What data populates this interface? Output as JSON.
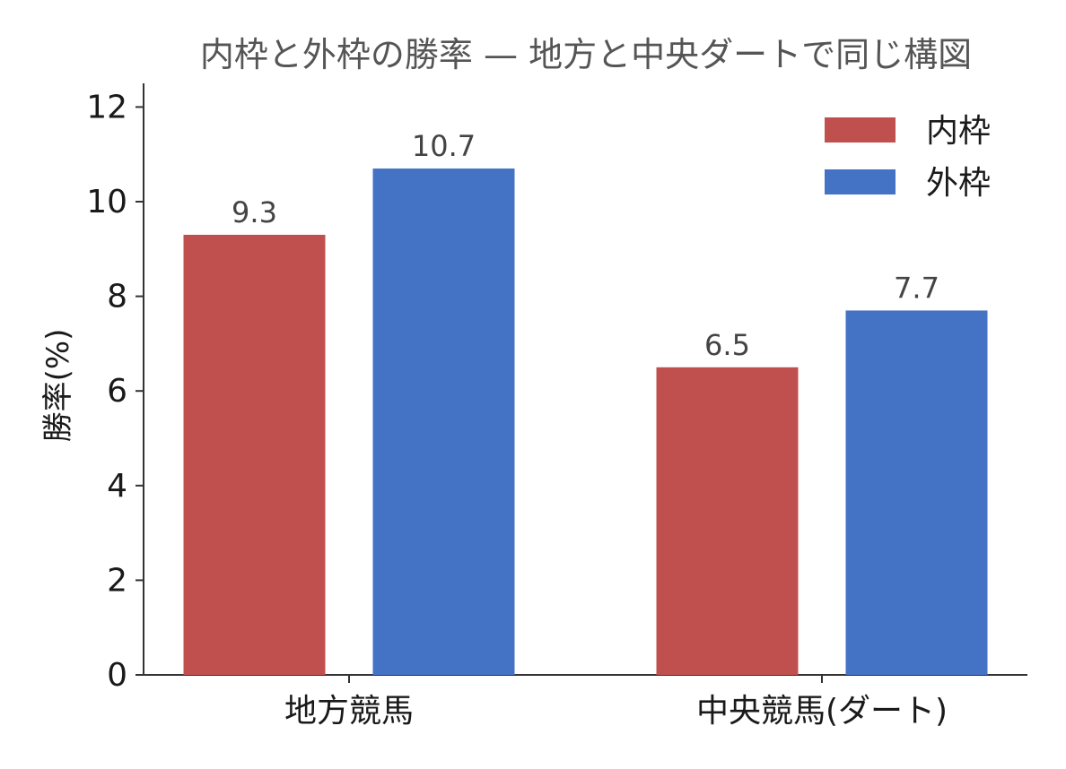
{
  "chart_data": {
    "type": "bar",
    "title": "内枠と外枠の勝率 — 地方と中央ダートで同じ構図",
    "xlabel": "",
    "ylabel": "勝率(%)",
    "categories": [
      "地方競馬",
      "中央競馬(ダート)"
    ],
    "series": [
      {
        "name": "内枠",
        "values": [
          9.3,
          6.5
        ],
        "color": "#c0504d"
      },
      {
        "name": "外枠",
        "values": [
          10.7,
          7.7
        ],
        "color": "#4472c4"
      }
    ],
    "ylim": [
      0,
      12.5
    ],
    "yticks": [
      0,
      2,
      4,
      6,
      8,
      10,
      12
    ],
    "value_labels": [
      [
        "9.3",
        "6.5"
      ],
      [
        "10.7",
        "7.7"
      ]
    ],
    "grid": false,
    "legend_position": "top-right"
  }
}
